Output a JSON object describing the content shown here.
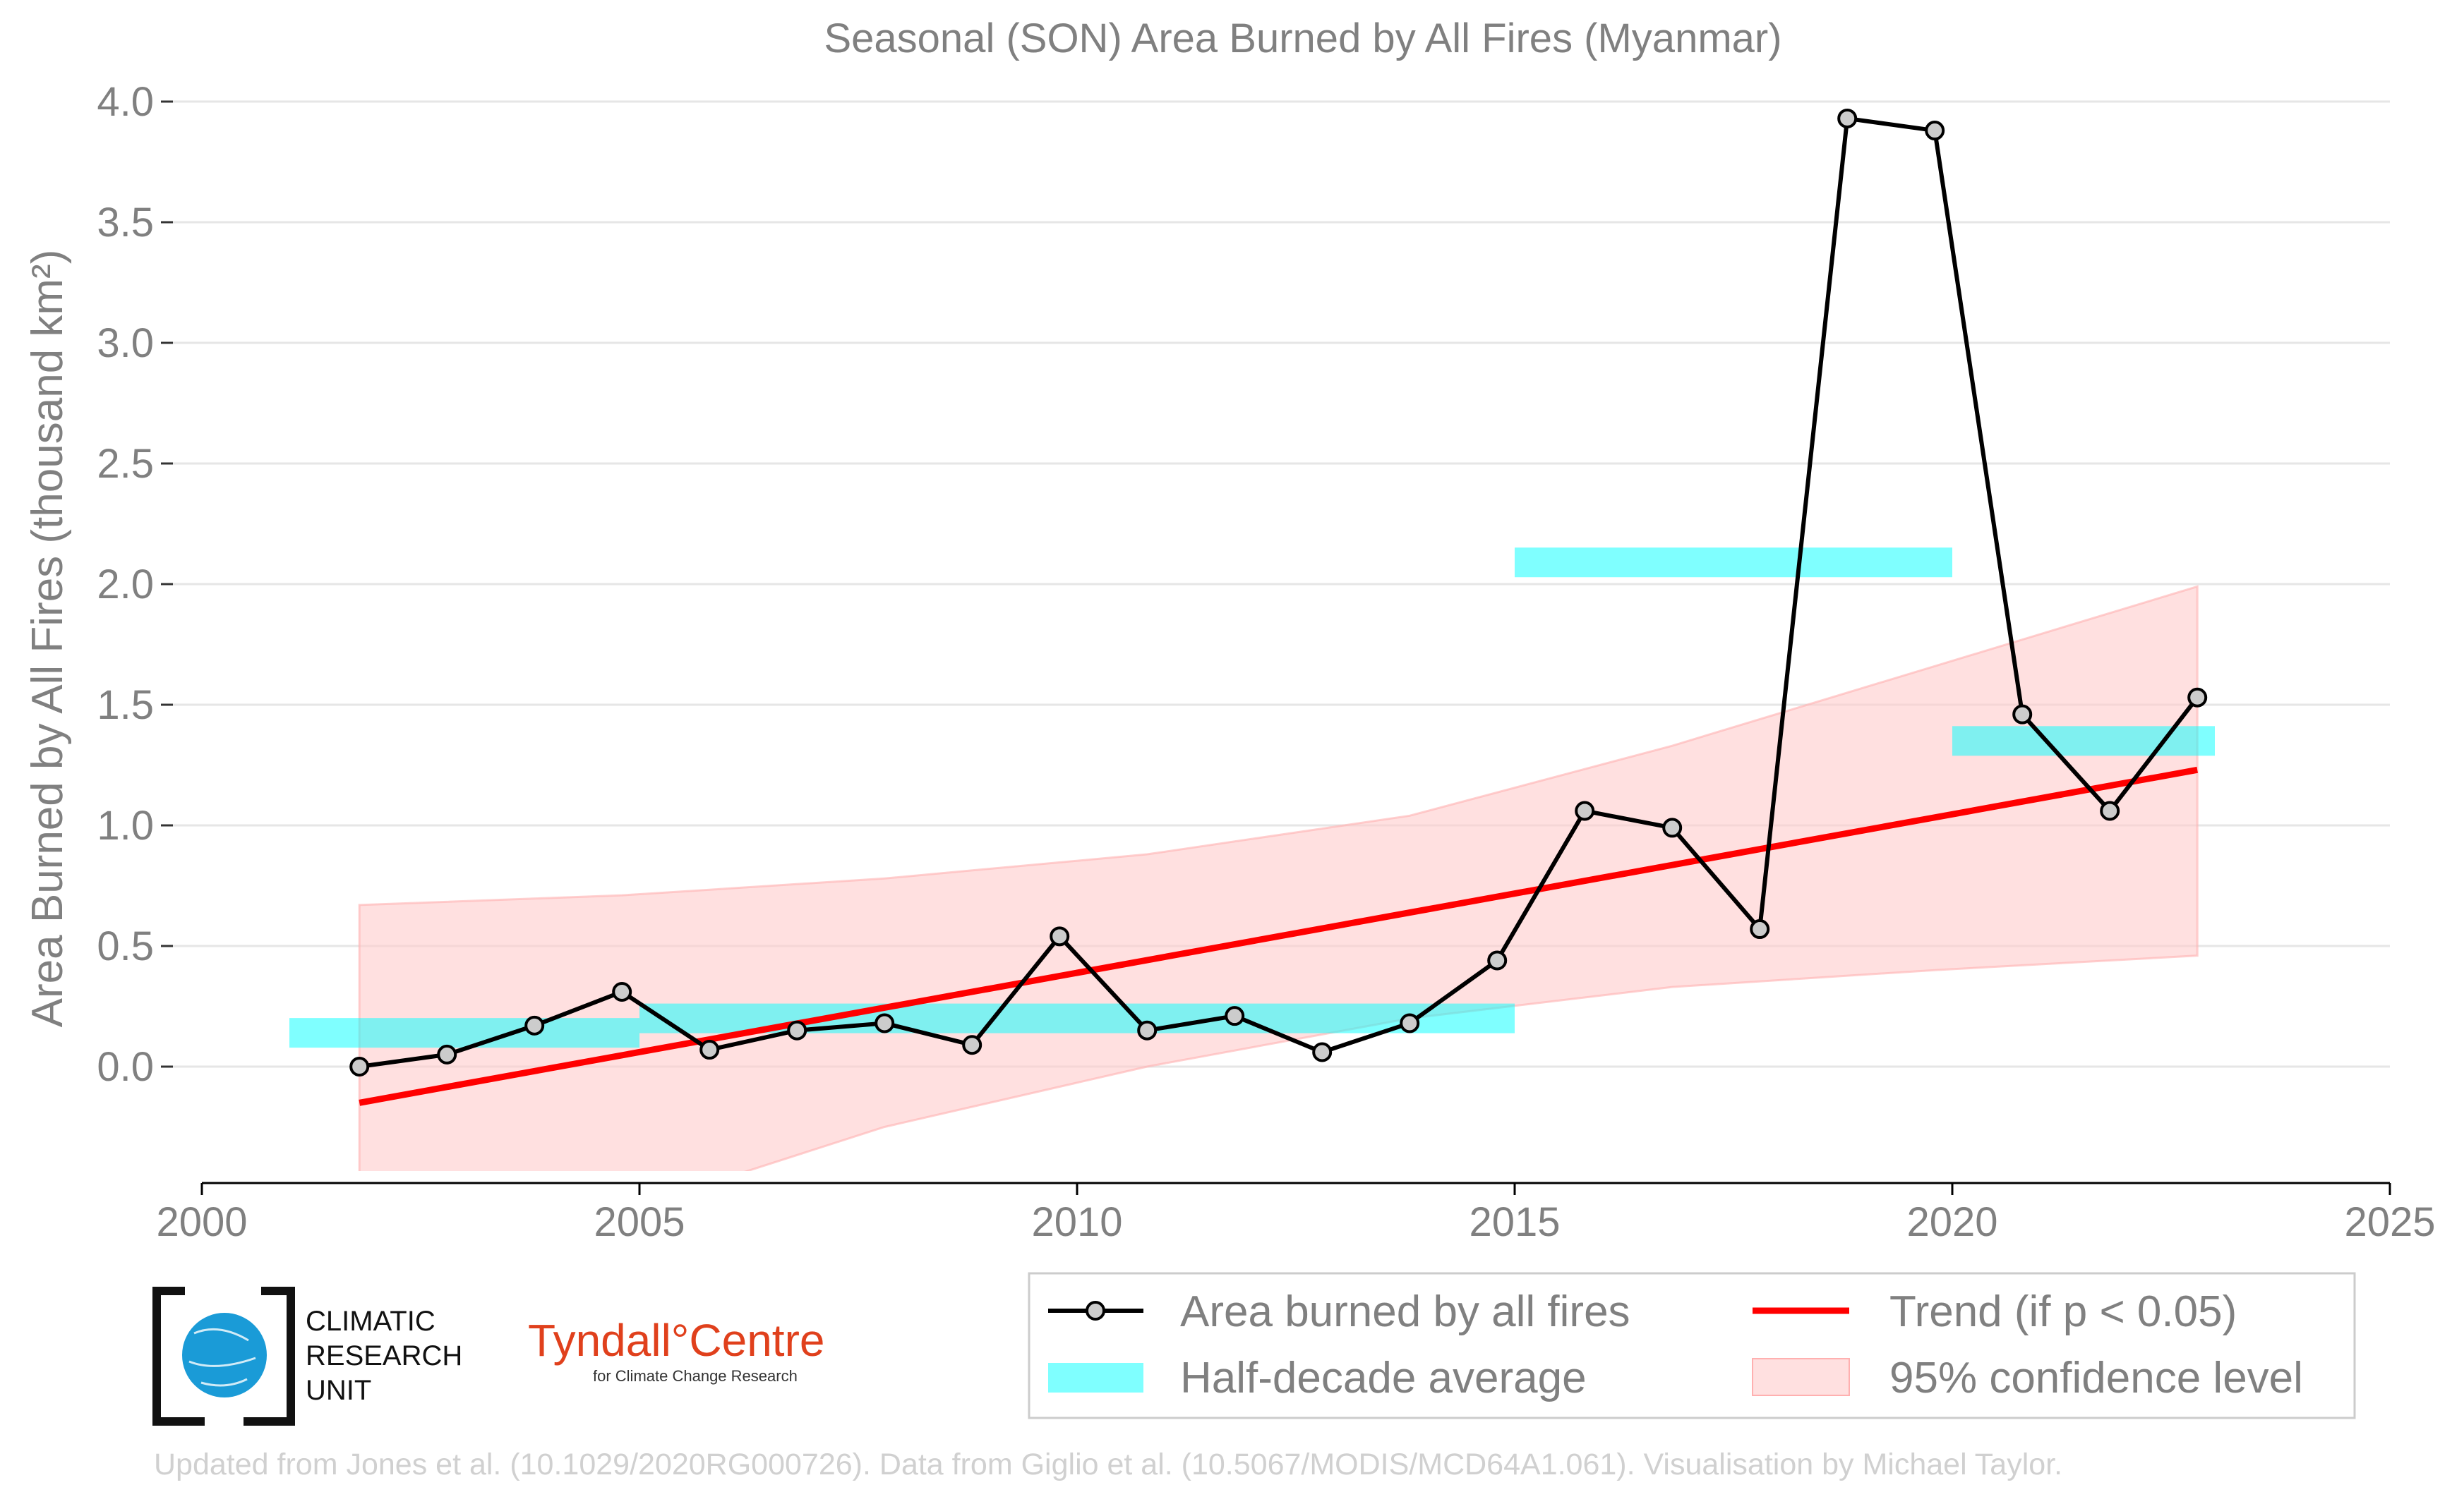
{
  "chart_data": {
    "type": "line",
    "title": "Seasonal (SON) Area Burned by All Fires (Myanmar)",
    "ylabel": "Area Burned by All Fires (thousand km²)",
    "xlabel": "",
    "xlim": [
      2000,
      2025
    ],
    "ylim": [
      -0.5,
      4.0
    ],
    "x_ticks": [
      2000,
      2005,
      2010,
      2015,
      2020,
      2025
    ],
    "y_ticks": [
      0.0,
      0.5,
      1.0,
      1.5,
      2.0,
      2.5,
      3.0,
      3.5,
      4.0
    ],
    "grid": "horizontal",
    "legend_position": "bottom-right",
    "series": [
      {
        "name": "Area burned by all fires",
        "color": "#000000",
        "x": [
          2001.8,
          2002.8,
          2003.8,
          2004.8,
          2005.8,
          2006.8,
          2007.8,
          2008.8,
          2009.8,
          2010.8,
          2011.8,
          2012.8,
          2013.8,
          2014.8,
          2015.8,
          2016.8,
          2017.8,
          2018.8,
          2019.8,
          2020.8,
          2021.8,
          2022.8
        ],
        "y": [
          0.0,
          0.05,
          0.17,
          0.31,
          0.07,
          0.15,
          0.18,
          0.09,
          0.54,
          0.15,
          0.21,
          0.06,
          0.18,
          0.44,
          1.06,
          0.99,
          0.57,
          3.93,
          3.88,
          1.46,
          1.06,
          1.53
        ]
      },
      {
        "name": "Half-decade average",
        "color": "#00ffff",
        "segments": [
          {
            "x0": 2001.0,
            "x1": 2005.0,
            "y": 0.14
          },
          {
            "x0": 2005.0,
            "x1": 2015.0,
            "y": 0.2
          },
          {
            "x0": 2015.0,
            "x1": 2020.0,
            "y": 2.09
          },
          {
            "x0": 2020.0,
            "x1": 2023.0,
            "y": 1.35
          }
        ]
      },
      {
        "name": "Trend (if p < 0.05)",
        "color": "#ff0000",
        "x": [
          2001.8,
          2022.8
        ],
        "y": [
          -0.15,
          1.23
        ]
      },
      {
        "name": "95% confidence level",
        "color": "#ffcccc",
        "x": [
          2001.8,
          2004.8,
          2007.8,
          2010.8,
          2013.8,
          2016.8,
          2019.8,
          2022.8
        ],
        "upper": [
          0.67,
          0.71,
          0.78,
          0.88,
          1.04,
          1.33,
          1.66,
          1.99
        ],
        "lower": [
          -0.98,
          -0.6,
          -0.25,
          0.0,
          0.2,
          0.33,
          0.4,
          0.46
        ]
      }
    ]
  },
  "legend": {
    "items": [
      {
        "label": "Area burned by all fires"
      },
      {
        "label": "Trend (if p < 0.05)"
      },
      {
        "label": "Half-decade average"
      },
      {
        "label": "95% confidence level"
      }
    ]
  },
  "logos": {
    "cru_line1": "CLIMATIC",
    "cru_line2": "RESEARCH",
    "cru_line3": "UNIT",
    "tyndall_name": "Tyndall°Centre",
    "tyndall_sub": "for Climate Change Research"
  },
  "credit": "Updated from Jones et al. (10.1029/2020RG000726). Data from Giglio et al. (10.5067/MODIS/MCD64A1.061). Visualisation by Michael Taylor."
}
